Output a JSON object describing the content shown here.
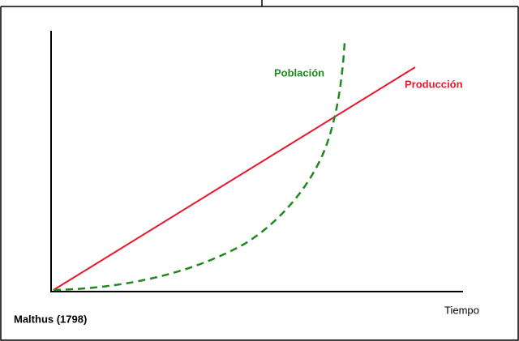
{
  "labels": {
    "population": "Población",
    "production": "Producción",
    "time": "Tiempo",
    "caption": "Malthus (1798)"
  }
}
